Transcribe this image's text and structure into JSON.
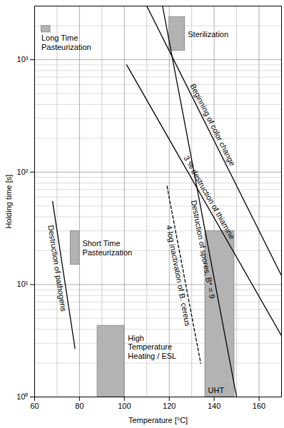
{
  "chart_data": {
    "type": "line",
    "xlabel": "Temperature [°C]",
    "ylabel": "Holding time [s]",
    "xlim": [
      60,
      170
    ],
    "ylim": [
      1,
      3000
    ],
    "xticks": [
      60,
      80,
      100,
      120,
      140,
      160
    ],
    "yticks": [
      {
        "value": 1,
        "label": "10⁰"
      },
      {
        "value": 10,
        "label": "10¹"
      },
      {
        "value": 100,
        "label": "10²"
      },
      {
        "value": 1000,
        "label": "10³"
      }
    ],
    "log": "y",
    "grid": true,
    "series": [
      {
        "name": "Destruction of pathogens",
        "color": "#000000",
        "line_style": "solid",
        "x": [
          68,
          78
        ],
        "values": [
          55,
          2.7
        ]
      },
      {
        "name": "4 log inactivation of B. cereus",
        "color": "#000000",
        "line_style": "dashed",
        "x": [
          119,
          134
        ],
        "values": [
          75,
          2
        ]
      },
      {
        "name": "Destruction of spores, B* = 9",
        "color": "#000000",
        "line_style": "solid",
        "x": [
          117,
          150
        ],
        "values": [
          3000,
          1
        ]
      },
      {
        "name": "3 % destruction of thiamine",
        "color": "#000000",
        "line_style": "solid",
        "x": [
          101,
          170
        ],
        "values": [
          900,
          3.5
        ]
      },
      {
        "name": "Beginning of color change",
        "color": "#000000",
        "line_style": "solid",
        "x": [
          110,
          170
        ],
        "values": [
          3000,
          12
        ]
      }
    ],
    "regions": [
      {
        "name": "Long Time\nPasteurization",
        "color": "#b3b3b3",
        "x": [
          63,
          67
        ],
        "y": [
          1750,
          2000
        ]
      },
      {
        "name": "Sterilization",
        "color": "#b3b3b3",
        "x": [
          120,
          127
        ],
        "y": [
          1200,
          2400
        ]
      },
      {
        "name": "Short Time\nPasteurization",
        "color": "#b3b3b3",
        "x": [
          76,
          80
        ],
        "y": [
          15,
          30
        ]
      },
      {
        "name": "High\nTemperature\nHeating / ESL",
        "color": "#b3b3b3",
        "x": [
          88,
          100
        ],
        "y": [
          1,
          4.3
        ]
      },
      {
        "name": "UHT",
        "color": "#b3b3b3",
        "x": [
          136,
          149
        ],
        "y": [
          1,
          30
        ]
      }
    ]
  }
}
